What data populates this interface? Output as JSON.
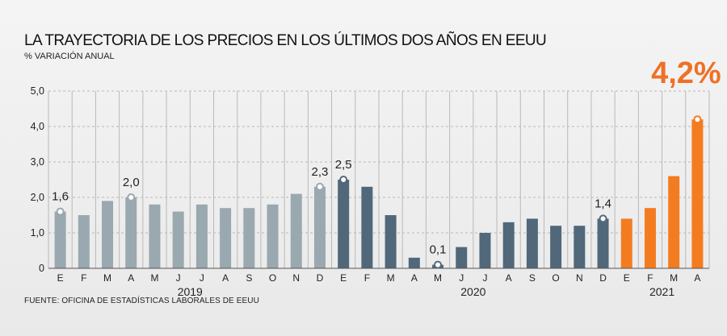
{
  "title": "LA TRAYECTORIA DE LOS PRECIOS EN LOS ÚLTIMOS DOS AÑOS EN EEUU",
  "subtitle": "% VARIACIÓN ANUAL",
  "source": "FUENTE: OFICINA DE ESTADÍSTICAS LABORALES DE EEUU",
  "colors": {
    "year_2019": "#9aa8af",
    "year_2020": "#51687a",
    "year_2021": "#f47c20",
    "grid": "#b9b9b9",
    "highlight_label": "#ee7127"
  },
  "chart_data": {
    "type": "bar",
    "categories": [
      "E",
      "F",
      "M",
      "A",
      "M",
      "J",
      "J",
      "A",
      "S",
      "O",
      "N",
      "D",
      "E",
      "F",
      "M",
      "A",
      "M",
      "J",
      "J",
      "A",
      "S",
      "O",
      "N",
      "D",
      "E",
      "F",
      "M",
      "A"
    ],
    "values": [
      1.6,
      1.5,
      1.9,
      2.0,
      1.8,
      1.6,
      1.8,
      1.7,
      1.7,
      1.8,
      2.1,
      2.3,
      2.5,
      2.3,
      1.5,
      0.3,
      0.1,
      0.6,
      1.0,
      1.3,
      1.4,
      1.2,
      1.2,
      1.4,
      1.4,
      1.7,
      2.6,
      4.2
    ],
    "groups": [
      {
        "label": "2019",
        "count": 12,
        "color_key": "year_2019"
      },
      {
        "label": "2020",
        "count": 12,
        "color_key": "year_2020"
      },
      {
        "label": "2021",
        "count": 4,
        "color_key": "year_2021"
      }
    ],
    "yticks": [
      "0",
      "1,0",
      "2,0",
      "3,0",
      "4,0",
      "5,0"
    ],
    "ylim": [
      0,
      5
    ],
    "grid": true,
    "annotations": [
      {
        "index": 0,
        "label": "1,6"
      },
      {
        "index": 3,
        "label": "2,0"
      },
      {
        "index": 11,
        "label": "2,3"
      },
      {
        "index": 12,
        "label": "2,5"
      },
      {
        "index": 16,
        "label": "0,1"
      },
      {
        "index": 23,
        "label": "1,4"
      },
      {
        "index": 27,
        "label": "4,2%",
        "highlight": true
      }
    ]
  }
}
